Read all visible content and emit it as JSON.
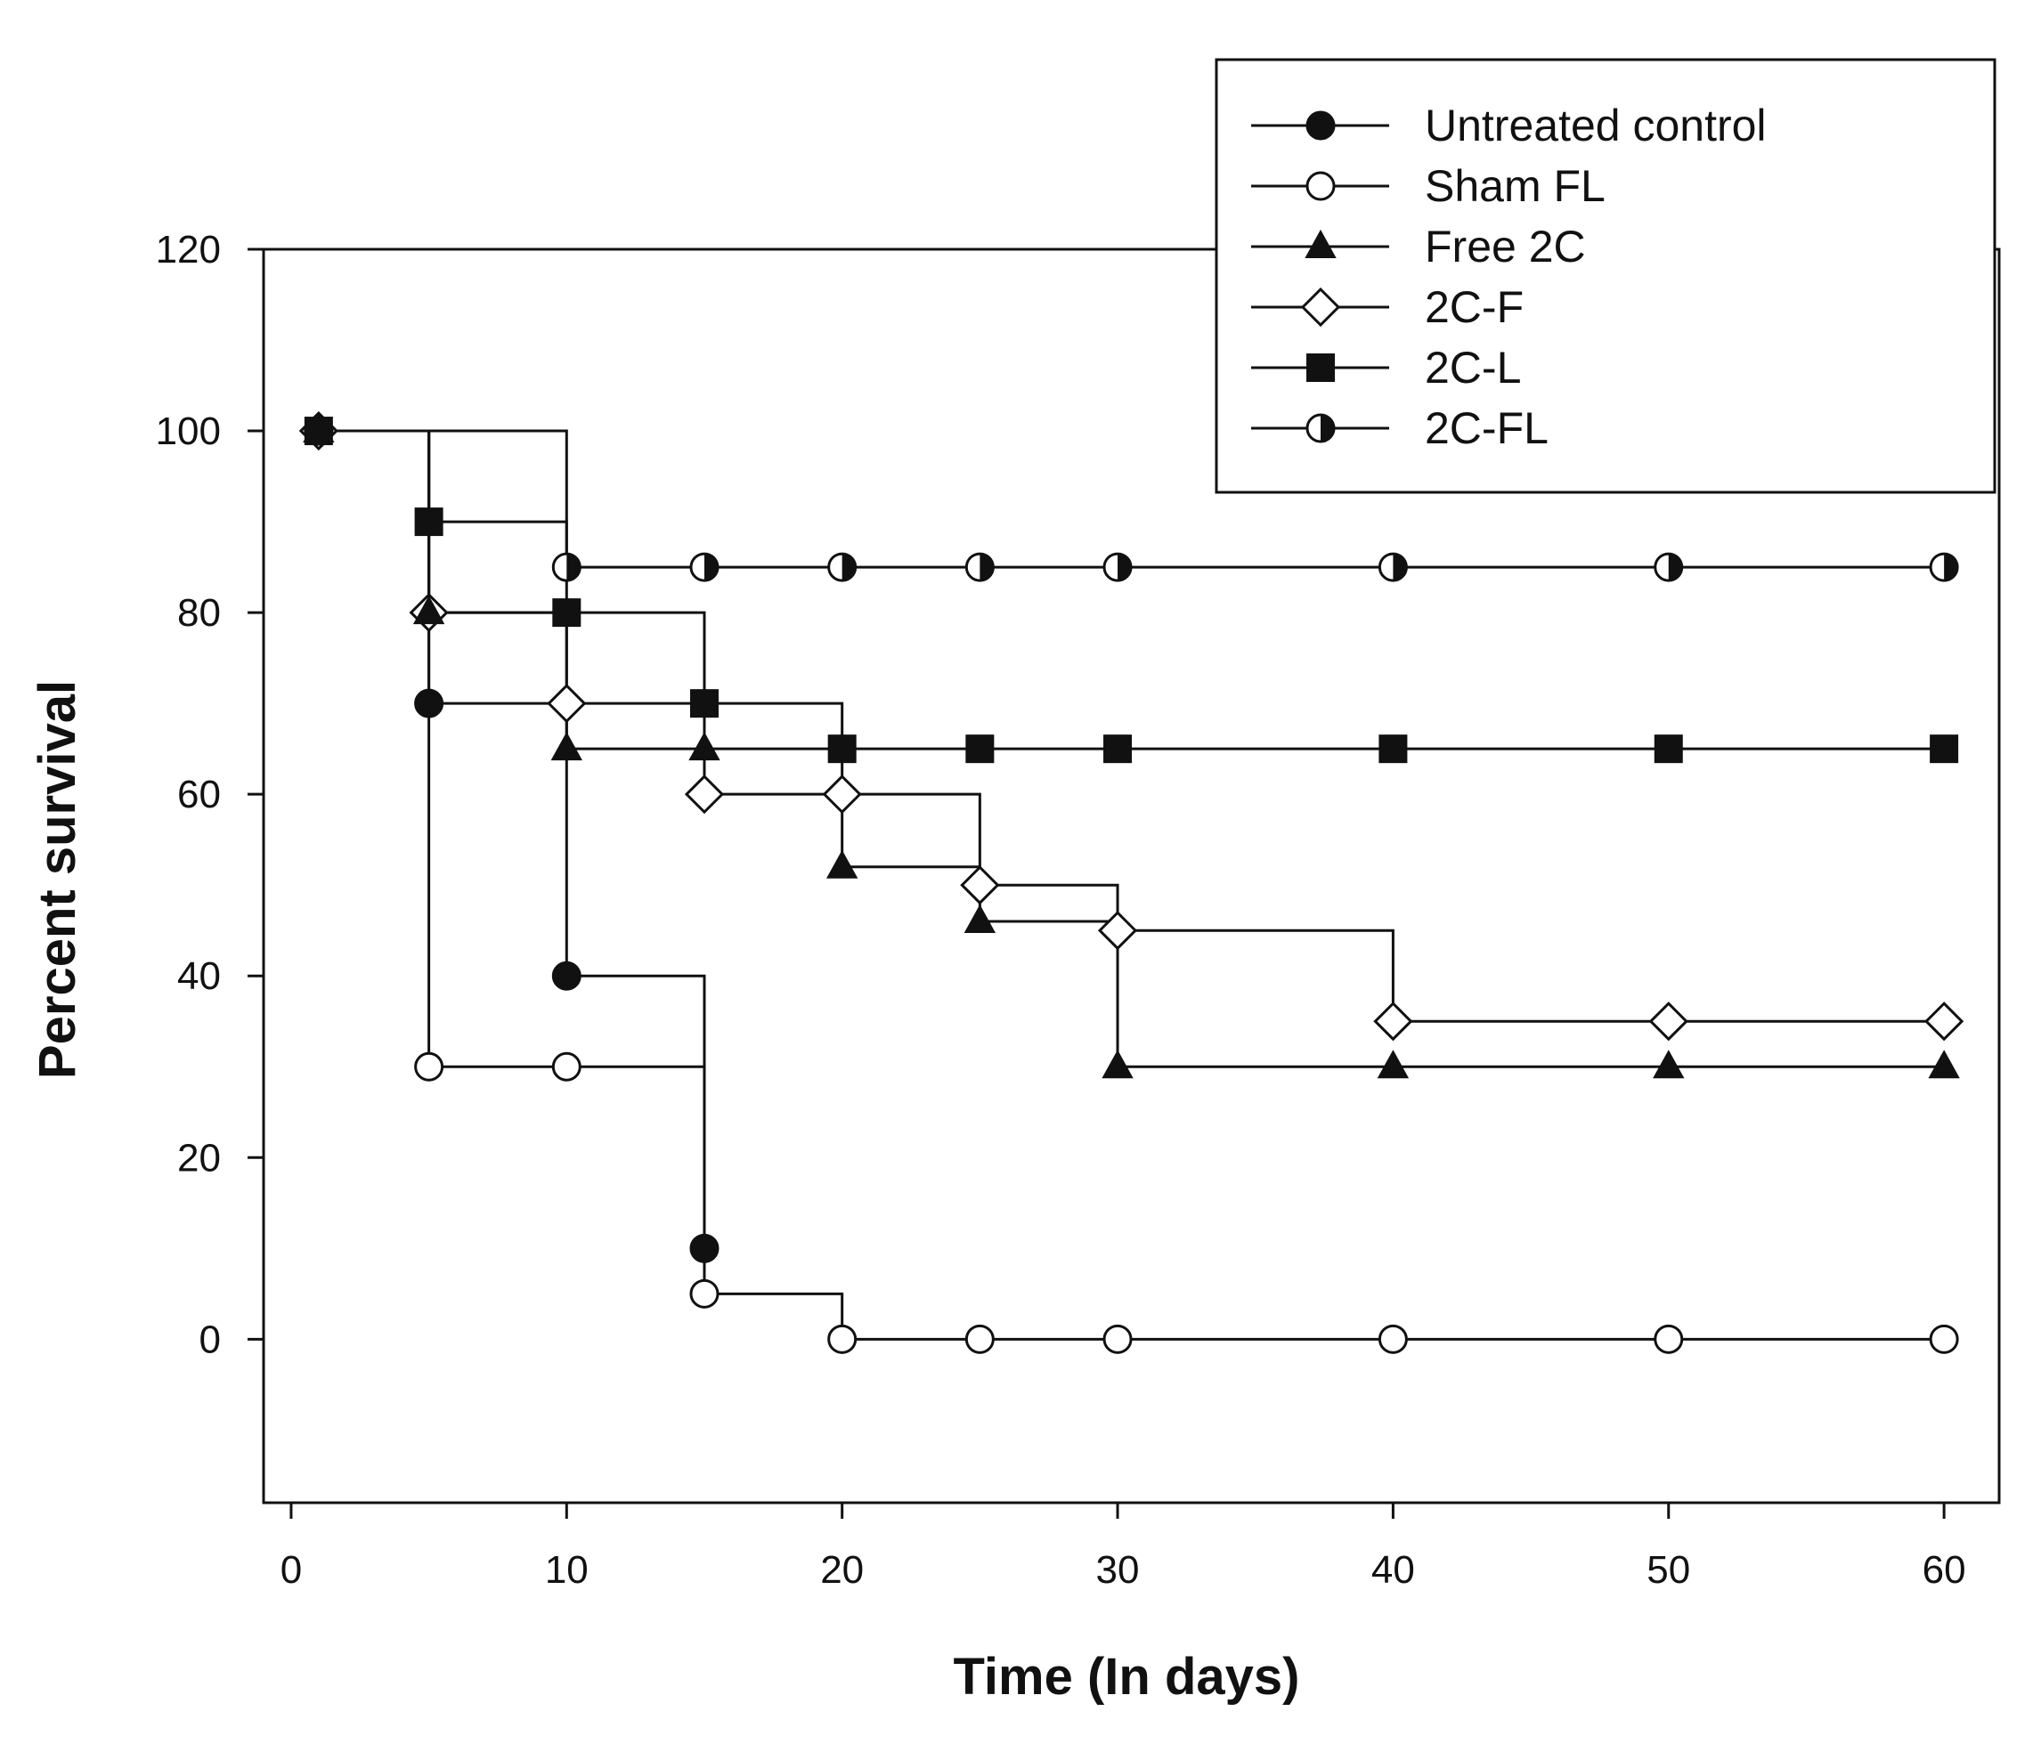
{
  "chart_data": {
    "type": "line",
    "step": true,
    "title": "",
    "xlabel": "Time (In days)",
    "ylabel": "Percent survival",
    "xlim": [
      -1,
      62
    ],
    "ylim": [
      -18,
      120
    ],
    "x_ticks": [
      0,
      10,
      20,
      30,
      40,
      50,
      60
    ],
    "y_ticks": [
      0,
      20,
      40,
      60,
      80,
      100,
      120
    ],
    "grid": false,
    "legend_position": "top-right",
    "series": [
      {
        "name": "Untreated control",
        "marker": "filled-circle",
        "x": [
          1,
          5,
          10,
          15
        ],
        "y": [
          100,
          70,
          40,
          10
        ]
      },
      {
        "name": "Sham FL",
        "marker": "open-circle",
        "x": [
          1,
          5,
          10,
          15,
          20,
          25,
          30,
          40,
          50,
          60
        ],
        "y": [
          100,
          30,
          30,
          5,
          0,
          0,
          0,
          0,
          0,
          0
        ]
      },
      {
        "name": "Free 2C",
        "marker": "filled-triangle",
        "x": [
          1,
          5,
          10,
          15,
          20,
          25,
          30,
          40,
          50,
          60
        ],
        "y": [
          100,
          80,
          65,
          65,
          52,
          46,
          30,
          30,
          30,
          30
        ]
      },
      {
        "name": "2C-F",
        "marker": "open-diamond",
        "x": [
          1,
          5,
          10,
          15,
          20,
          25,
          30,
          40,
          50,
          60
        ],
        "y": [
          100,
          80,
          70,
          60,
          60,
          50,
          45,
          35,
          35,
          35
        ]
      },
      {
        "name": "2C-L",
        "marker": "filled-square",
        "x": [
          1,
          5,
          10,
          15,
          20,
          25,
          30,
          40,
          50,
          60
        ],
        "y": [
          100,
          90,
          80,
          70,
          65,
          65,
          65,
          65,
          65,
          65
        ]
      },
      {
        "name": "2C-FL",
        "marker": "half-filled-circle",
        "x": [
          1,
          10,
          15,
          20,
          25,
          30,
          40,
          50,
          60
        ],
        "y": [
          100,
          85,
          85,
          85,
          85,
          85,
          85,
          85,
          85
        ]
      }
    ]
  }
}
